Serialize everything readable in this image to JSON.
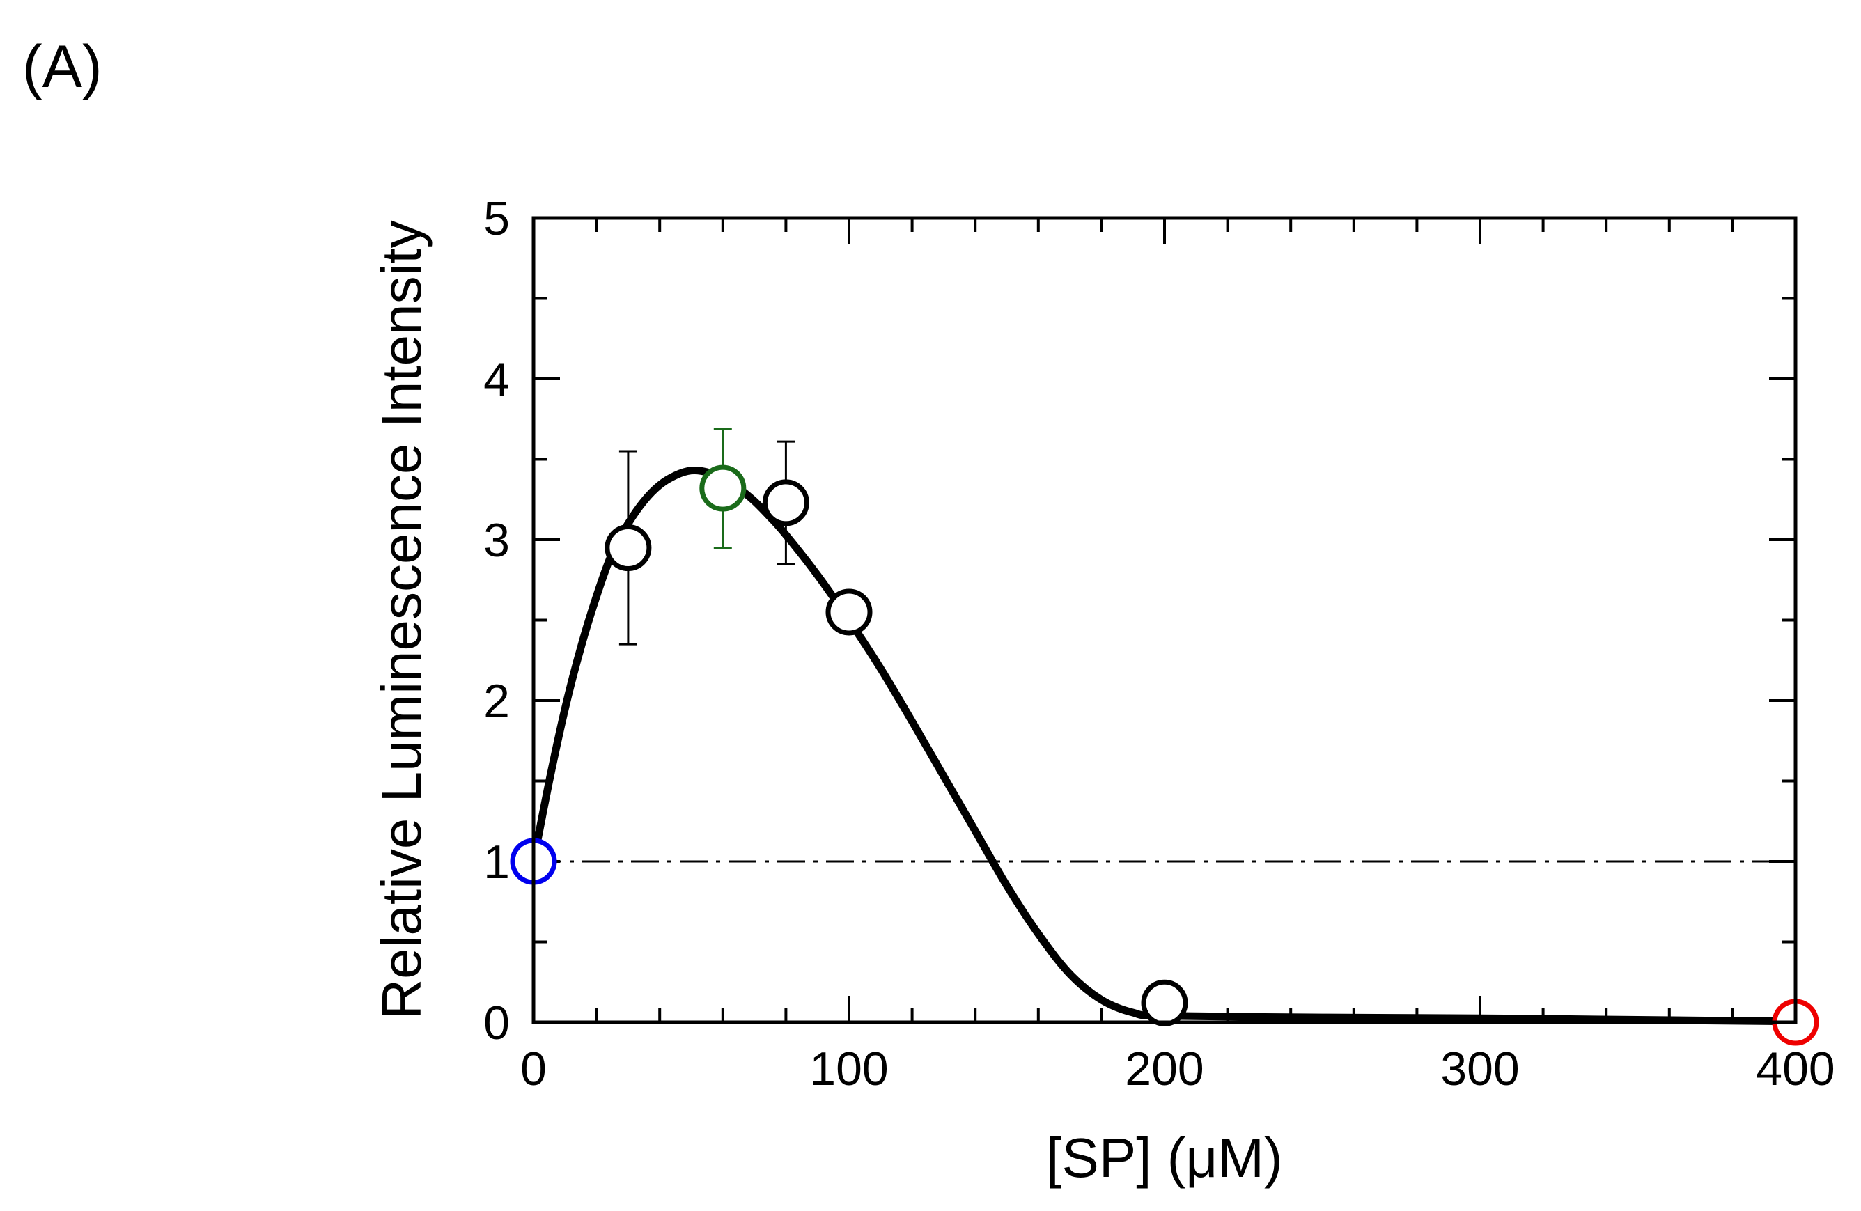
{
  "chart_data": {
    "type": "scatter",
    "panel_label": "(A)",
    "xlabel": "[SP] (μM)",
    "ylabel": "Relative Luminescence Intensity",
    "xlim": [
      0,
      400
    ],
    "ylim": [
      0,
      5
    ],
    "x_ticks": [
      0,
      100,
      200,
      300,
      400
    ],
    "x_tick_labels": [
      "0",
      "100",
      "200",
      "300",
      "400"
    ],
    "y_ticks": [
      0,
      1,
      2,
      3,
      4,
      5
    ],
    "y_tick_labels": [
      "0",
      "1",
      "2",
      "3",
      "4",
      "5"
    ],
    "x_minor_step": 20,
    "y_minor_step": 0.5,
    "grid": false,
    "reference_line": {
      "y": 1,
      "style": "dash-dot"
    },
    "points": [
      {
        "x": 0,
        "y": 1.0,
        "err": null,
        "color": "#0000ee"
      },
      {
        "x": 30,
        "y": 2.95,
        "err": 0.6,
        "color": "#000000"
      },
      {
        "x": 60,
        "y": 3.32,
        "err": 0.37,
        "color": "#1a6b1a"
      },
      {
        "x": 80,
        "y": 3.23,
        "err": 0.38,
        "color": "#000000"
      },
      {
        "x": 100,
        "y": 2.55,
        "err": null,
        "color": "#000000"
      },
      {
        "x": 200,
        "y": 0.12,
        "err": null,
        "color": "#000000"
      },
      {
        "x": 400,
        "y": 0.0,
        "err": null,
        "color": "#ee0000"
      }
    ],
    "fit_curve": {
      "x": [
        0,
        5,
        10,
        15,
        20,
        25,
        30,
        35,
        40,
        45,
        50,
        55,
        60,
        65,
        70,
        75,
        80,
        90,
        100,
        110,
        120,
        130,
        140,
        150,
        160,
        170,
        180,
        190,
        200,
        250,
        300,
        350,
        400
      ],
      "y": [
        1.0,
        1.5,
        1.95,
        2.33,
        2.65,
        2.92,
        3.1,
        3.24,
        3.34,
        3.4,
        3.43,
        3.42,
        3.38,
        3.32,
        3.24,
        3.14,
        3.03,
        2.78,
        2.5,
        2.2,
        1.87,
        1.53,
        1.19,
        0.85,
        0.55,
        0.3,
        0.14,
        0.06,
        0.04,
        0.03,
        0.025,
        0.015,
        0.005
      ]
    }
  }
}
